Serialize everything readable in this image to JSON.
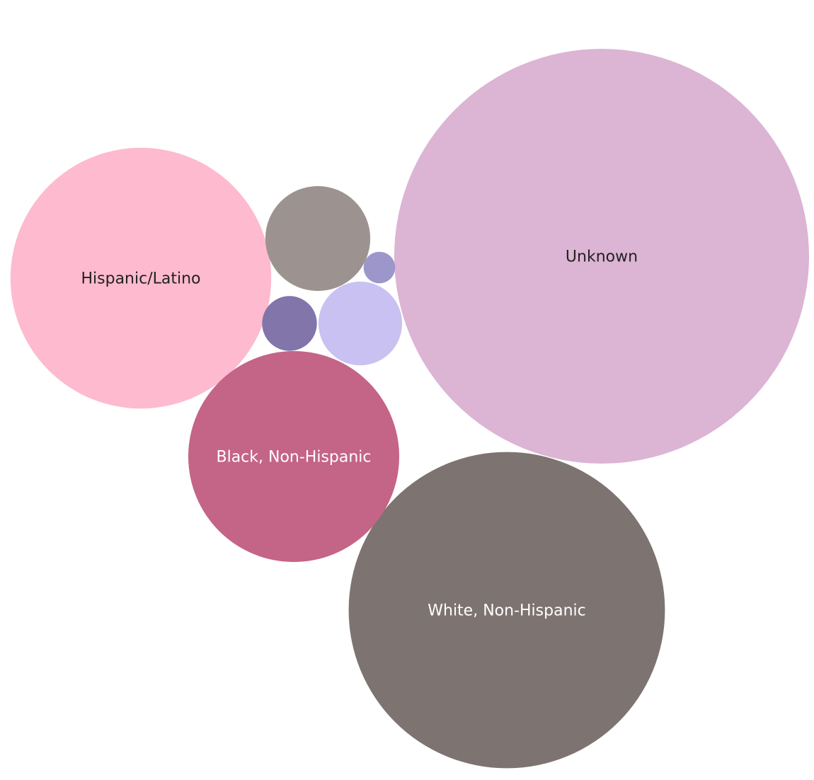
{
  "chart_data": {
    "type": "bubble",
    "title": "",
    "series": [
      {
        "label": "Unknown",
        "value": 34.4,
        "color": "#DCB4D4",
        "label_color": "#222222"
      },
      {
        "label": "White, Non-Hispanic",
        "value": 20.0,
        "color": "#7D7370",
        "label_color": "#ffffff"
      },
      {
        "label": "Hispanic/Latino",
        "value": 13.6,
        "color": "#FEBACF",
        "label_color": "#222222"
      },
      {
        "label": "Black, Non-Hispanic",
        "value": 8.9,
        "color": "#C46487",
        "label_color": "#ffffff"
      },
      {
        "label": "",
        "value": 2.2,
        "color": "#9C9390",
        "label_color": "#222222"
      },
      {
        "label": "",
        "value": 1.4,
        "color": "#C8C1F1",
        "label_color": "#222222"
      },
      {
        "label": "",
        "value": 0.6,
        "color": "#8275AA",
        "label_color": "#222222"
      },
      {
        "label": "",
        "value": 0.2,
        "color": "#9D96CB",
        "label_color": "#222222"
      }
    ]
  }
}
